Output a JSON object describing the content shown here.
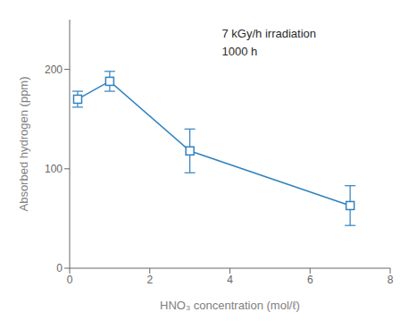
{
  "chart_data": {
    "type": "line",
    "x": [
      0.2,
      1.0,
      3.0,
      7.0
    ],
    "values": [
      170,
      188,
      118,
      63
    ],
    "yerr": [
      8,
      10,
      22,
      20
    ],
    "xlim": [
      0,
      8
    ],
    "ylim": [
      0,
      250
    ],
    "xticks": [
      0,
      2,
      4,
      6,
      8
    ],
    "yticks": [
      0,
      100,
      200
    ],
    "xlabel": "HNO₃ concentration (mol/ℓ)",
    "ylabel": "Absorbed hydrogen (ppm)",
    "annotation": "7 kGy/h irradiation\n1000 h",
    "marker": "square",
    "grid": false
  }
}
